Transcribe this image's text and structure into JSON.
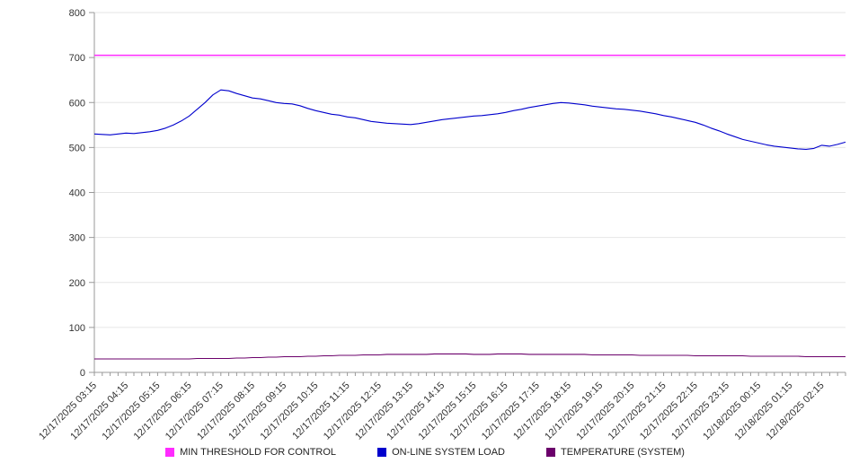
{
  "chart_data": {
    "type": "line",
    "title": "",
    "xlabel": "",
    "ylabel": "",
    "ylim": [
      0,
      800
    ],
    "y_tick_step": 100,
    "grid": true,
    "legend_position": "bottom",
    "x_points_per_label": 4,
    "x_labels": [
      "12/17/2025 03:15",
      "12/17/2025 04:15",
      "12/17/2025 05:15",
      "12/17/2025 06:15",
      "12/17/2025 07:15",
      "12/17/2025 08:15",
      "12/17/2025 09:15",
      "12/17/2025 10:15",
      "12/17/2025 11:15",
      "12/17/2025 12:15",
      "12/17/2025 13:15",
      "12/17/2025 14:15",
      "12/17/2025 15:15",
      "12/17/2025 16:15",
      "12/17/2025 17:15",
      "12/17/2025 18:15",
      "12/17/2025 19:15",
      "12/17/2025 20:15",
      "12/17/2025 21:15",
      "12/17/2025 22:15",
      "12/17/2025 23:15",
      "12/18/2025 00:15",
      "12/18/2025 01:15",
      "12/18/2025 02:15"
    ],
    "series": [
      {
        "name": "MIN THRESHOLD FOR CONTROL",
        "color": "#ff2bff",
        "type": "constant",
        "value": 705
      },
      {
        "name": "ON-LINE SYSTEM LOAD",
        "color": "#0000cd",
        "type": "line",
        "values": [
          530,
          529,
          528,
          530,
          532,
          531,
          533,
          535,
          538,
          543,
          550,
          559,
          570,
          585,
          600,
          617,
          628,
          626,
          620,
          615,
          610,
          608,
          604,
          600,
          598,
          597,
          593,
          587,
          582,
          578,
          574,
          572,
          568,
          566,
          562,
          558,
          556,
          554,
          553,
          552,
          551,
          553,
          556,
          559,
          562,
          564,
          566,
          568,
          570,
          571,
          573,
          575,
          578,
          582,
          585,
          589,
          592,
          595,
          598,
          600,
          599,
          597,
          595,
          592,
          590,
          588,
          586,
          585,
          583,
          581,
          578,
          575,
          571,
          568,
          564,
          560,
          556,
          550,
          543,
          537,
          530,
          524,
          518,
          514,
          510,
          506,
          503,
          501,
          499,
          497,
          496,
          498,
          505,
          503,
          507,
          512
        ]
      },
      {
        "name": "TEMPERATURE (SYSTEM)",
        "color": "#6b006b",
        "type": "line",
        "values": [
          30,
          30,
          30,
          30,
          30,
          30,
          30,
          30,
          30,
          30,
          30,
          30,
          30,
          31,
          31,
          31,
          31,
          31,
          32,
          32,
          33,
          33,
          34,
          34,
          35,
          35,
          35,
          36,
          36,
          37,
          37,
          38,
          38,
          38,
          39,
          39,
          39,
          40,
          40,
          40,
          40,
          40,
          40,
          41,
          41,
          41,
          41,
          41,
          40,
          40,
          40,
          41,
          41,
          41,
          41,
          40,
          40,
          40,
          40,
          40,
          40,
          40,
          40,
          39,
          39,
          39,
          39,
          39,
          39,
          38,
          38,
          38,
          38,
          38,
          38,
          38,
          37,
          37,
          37,
          37,
          37,
          37,
          37,
          36,
          36,
          36,
          36,
          36,
          36,
          36,
          35,
          35,
          35,
          35,
          35,
          35
        ]
      }
    ]
  }
}
